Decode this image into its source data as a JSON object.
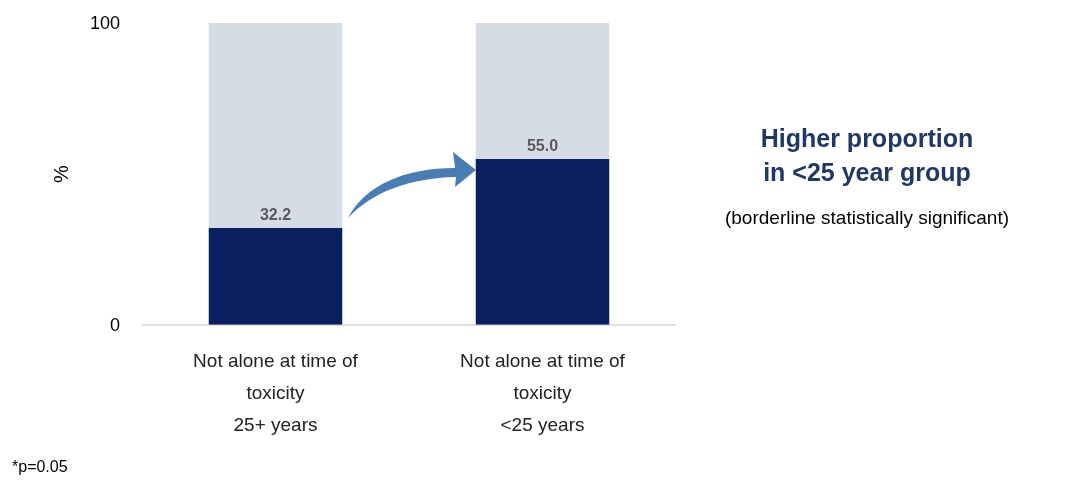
{
  "chart_data": {
    "type": "bar",
    "stacked": true,
    "ylabel": "%",
    "categories": [
      "Not alone at time of\ntoxicity\n25+ years",
      "Not alone at time of\ntoxicity\n<25 years"
    ],
    "series": [
      {
        "color": "#0b2060",
        "values": [
          32.2,
          55.0
        ],
        "value_labels": [
          "32.2",
          "55.0"
        ]
      },
      {
        "color": "#d6dce5",
        "values": [
          67.8,
          45.0
        ]
      }
    ],
    "ylim": [
      0,
      100
    ],
    "yticks": [
      0,
      100
    ],
    "annotations": [
      "Higher proportion\nin <25 year group",
      "(borderline statistically significant)",
      "*p=0.05"
    ]
  }
}
